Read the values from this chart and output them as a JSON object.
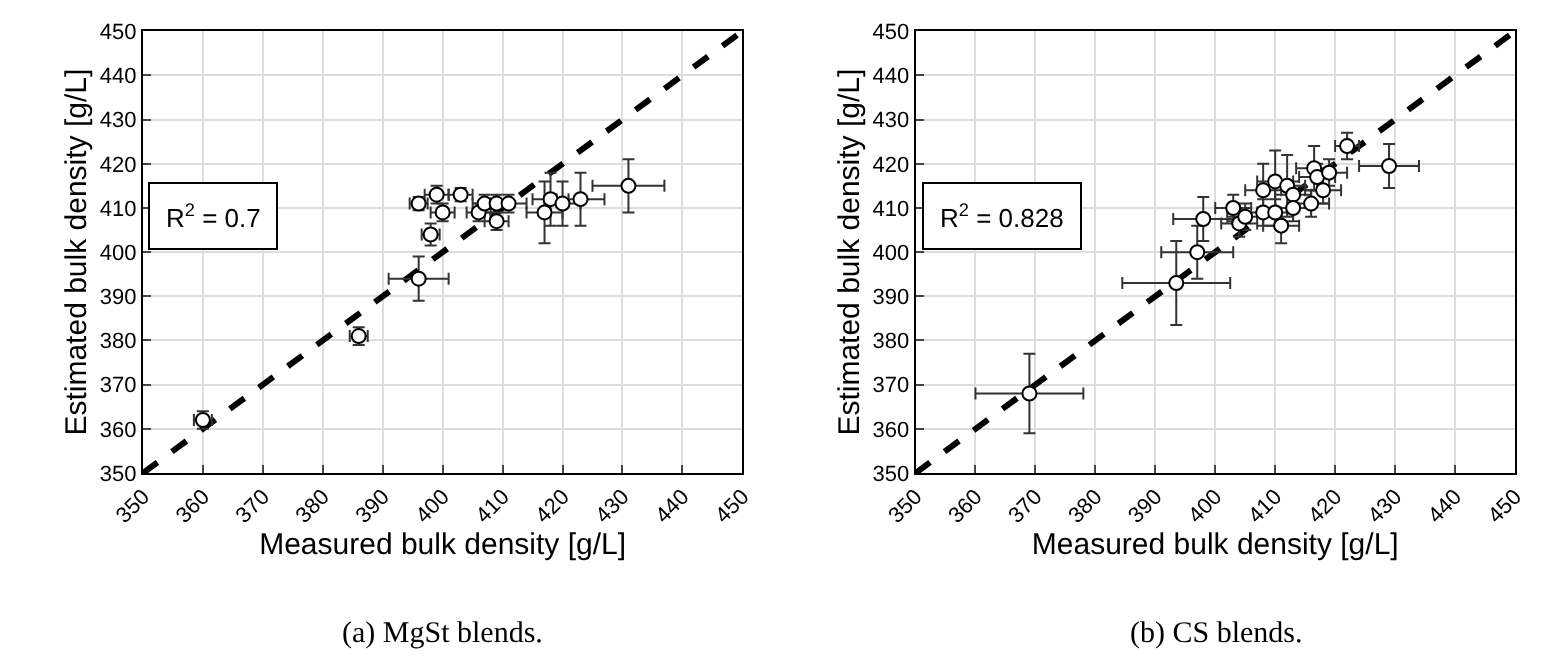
{
  "chart_data": [
    {
      "type": "scatter",
      "xlabel": "Measured bulk density [g/L]",
      "ylabel": "Estimated bulk density [g/L]",
      "annotations": [
        "R$^{2}$ = 0.7",
        "(a) MgSt blends."
      ],
      "xlim": [
        350,
        450
      ],
      "ylim": [
        350,
        450
      ],
      "xticks": [
        350,
        360,
        370,
        380,
        390,
        400,
        410,
        420,
        430,
        440,
        450
      ],
      "yticks": [
        350,
        360,
        370,
        380,
        390,
        400,
        410,
        420,
        430,
        440,
        450
      ],
      "grid": true,
      "marker": "circle",
      "series": [
        {
          "type": "line",
          "color": "#000000",
          "line_style": "dashed",
          "marker": "none",
          "x": [
            350,
            450
          ],
          "values": [
            350,
            450
          ]
        },
        {
          "color": "#000000",
          "x": [
            360,
            386,
            396,
            398,
            396,
            399,
            400,
            403,
            406,
            407,
            409,
            409,
            411,
            417,
            418,
            420,
            423,
            431
          ],
          "values": [
            362,
            381,
            394,
            404,
            411,
            413,
            409,
            413,
            409,
            411,
            407,
            411,
            411,
            409,
            412,
            411,
            412,
            415
          ],
          "xerrors": [
            1.5,
            1.5,
            5,
            1.5,
            1.5,
            2,
            2,
            2,
            2,
            2,
            2,
            2,
            3,
            3,
            3,
            3,
            4,
            6
          ],
          "errors": [
            2,
            2,
            5,
            2.5,
            1.5,
            2,
            2,
            1.5,
            2,
            2,
            2,
            2,
            2,
            7,
            6,
            5,
            6,
            6
          ]
        }
      ]
    },
    {
      "type": "scatter",
      "xlabel": "Measured bulk density [g/L]",
      "ylabel": "Estimated bulk density [g/L]",
      "annotations": [
        "R$^{2}$ = 0.828",
        "(b) CS blends."
      ],
      "xlim": [
        350,
        450
      ],
      "ylim": [
        350,
        450
      ],
      "xticks": [
        350,
        360,
        370,
        380,
        390,
        400,
        410,
        420,
        430,
        440,
        450
      ],
      "yticks": [
        350,
        360,
        370,
        380,
        390,
        400,
        410,
        420,
        430,
        440,
        450
      ],
      "grid": true,
      "marker": "circle",
      "series": [
        {
          "type": "line",
          "color": "#000000",
          "line_style": "dashed",
          "marker": "none",
          "x": [
            350,
            450
          ],
          "values": [
            350,
            450
          ]
        },
        {
          "color": "#000000",
          "x": [
            369,
            393.5,
            397,
            398,
            403,
            404,
            405,
            408,
            408,
            410,
            410,
            411,
            412,
            413,
            413,
            416,
            416.5,
            417,
            418,
            419,
            422,
            429
          ],
          "values": [
            368,
            393,
            400,
            407.5,
            410,
            406.5,
            408,
            409,
            414,
            416,
            409,
            406,
            415,
            413,
            410,
            411,
            419,
            417,
            414,
            418,
            424,
            419.5
          ],
          "xerrors": [
            9,
            9,
            6,
            5,
            3,
            3,
            3,
            3,
            3,
            3,
            3,
            3,
            3,
            3,
            3,
            3,
            3,
            3,
            3,
            3,
            2,
            5
          ],
          "errors": [
            9,
            9.5,
            6,
            5,
            3,
            3,
            3,
            3,
            6,
            7,
            3,
            4,
            7,
            3,
            3,
            3,
            5,
            3,
            3,
            3,
            3,
            5
          ]
        }
      ]
    }
  ]
}
